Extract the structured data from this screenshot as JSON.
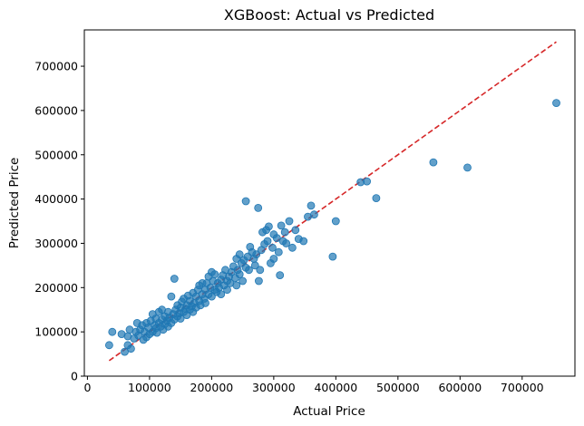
{
  "chart_data": {
    "type": "scatter",
    "title": "XGBoost: Actual vs Predicted",
    "xlabel": "Actual Price",
    "ylabel": "Predicted Price",
    "xlim": [
      -5000,
      785000
    ],
    "ylim": [
      0,
      782000
    ],
    "xticks": [
      0,
      100000,
      200000,
      300000,
      400000,
      500000,
      600000,
      700000
    ],
    "yticks": [
      0,
      100000,
      200000,
      300000,
      400000,
      500000,
      600000,
      700000
    ],
    "xtick_labels": [
      "0",
      "100000",
      "200000",
      "300000",
      "400000",
      "500000",
      "600000",
      "700000"
    ],
    "ytick_labels": [
      "0",
      "100000",
      "200000",
      "300000",
      "400000",
      "500000",
      "600000",
      "700000"
    ],
    "grid": false,
    "colors": {
      "points": "#1f77b4",
      "reference_line": "#d62728"
    },
    "reference_line": {
      "style": "dashed",
      "from": [
        35000,
        35000
      ],
      "to": [
        755000,
        755000
      ]
    },
    "points": [
      [
        35000,
        70000
      ],
      [
        40000,
        100000
      ],
      [
        55000,
        95000
      ],
      [
        60000,
        55000
      ],
      [
        65000,
        90000
      ],
      [
        65000,
        70000
      ],
      [
        68000,
        105000
      ],
      [
        70000,
        62000
      ],
      [
        75000,
        85000
      ],
      [
        78000,
        100000
      ],
      [
        80000,
        120000
      ],
      [
        82000,
        92000
      ],
      [
        85000,
        105000
      ],
      [
        88000,
        115000
      ],
      [
        90000,
        82000
      ],
      [
        92000,
        100000
      ],
      [
        95000,
        88000
      ],
      [
        95000,
        120000
      ],
      [
        98000,
        110000
      ],
      [
        100000,
        95000
      ],
      [
        102000,
        125000
      ],
      [
        105000,
        100000
      ],
      [
        105000,
        140000
      ],
      [
        108000,
        115000
      ],
      [
        110000,
        108000
      ],
      [
        110000,
        130000
      ],
      [
        112000,
        98000
      ],
      [
        115000,
        120000
      ],
      [
        115000,
        145000
      ],
      [
        118000,
        112000
      ],
      [
        120000,
        128000
      ],
      [
        120000,
        150000
      ],
      [
        122000,
        105000
      ],
      [
        125000,
        118000
      ],
      [
        125000,
        135000
      ],
      [
        128000,
        125000
      ],
      [
        130000,
        145000
      ],
      [
        130000,
        112000
      ],
      [
        132000,
        132000
      ],
      [
        135000,
        120000
      ],
      [
        135000,
        180000
      ],
      [
        138000,
        140000
      ],
      [
        140000,
        128000
      ],
      [
        140000,
        220000
      ],
      [
        142000,
        150000
      ],
      [
        145000,
        135000
      ],
      [
        145000,
        160000
      ],
      [
        148000,
        142000
      ],
      [
        150000,
        130000
      ],
      [
        150000,
        155000
      ],
      [
        152000,
        168000
      ],
      [
        155000,
        145000
      ],
      [
        155000,
        175000
      ],
      [
        158000,
        152000
      ],
      [
        160000,
        138000
      ],
      [
        160000,
        160000
      ],
      [
        162000,
        182000
      ],
      [
        165000,
        150000
      ],
      [
        165000,
        170000
      ],
      [
        168000,
        158000
      ],
      [
        170000,
        145000
      ],
      [
        170000,
        188000
      ],
      [
        172000,
        165000
      ],
      [
        175000,
        180000
      ],
      [
        175000,
        155000
      ],
      [
        178000,
        195000
      ],
      [
        180000,
        170000
      ],
      [
        180000,
        205000
      ],
      [
        182000,
        160000
      ],
      [
        185000,
        185000
      ],
      [
        185000,
        210000
      ],
      [
        188000,
        175000
      ],
      [
        190000,
        195000
      ],
      [
        190000,
        165000
      ],
      [
        192000,
        210000
      ],
      [
        195000,
        185000
      ],
      [
        195000,
        225000
      ],
      [
        198000,
        200000
      ],
      [
        200000,
        180000
      ],
      [
        200000,
        235000
      ],
      [
        202000,
        215000
      ],
      [
        205000,
        195000
      ],
      [
        205000,
        230000
      ],
      [
        208000,
        190000
      ],
      [
        210000,
        210000
      ],
      [
        212000,
        200000
      ],
      [
        215000,
        218000
      ],
      [
        215000,
        185000
      ],
      [
        218000,
        228000
      ],
      [
        220000,
        205000
      ],
      [
        222000,
        240000
      ],
      [
        225000,
        215000
      ],
      [
        225000,
        195000
      ],
      [
        228000,
        225000
      ],
      [
        230000,
        210000
      ],
      [
        232000,
        235000
      ],
      [
        235000,
        248000
      ],
      [
        238000,
        222000
      ],
      [
        240000,
        265000
      ],
      [
        240000,
        205000
      ],
      [
        242000,
        240000
      ],
      [
        245000,
        230000
      ],
      [
        245000,
        275000
      ],
      [
        248000,
        255000
      ],
      [
        250000,
        215000
      ],
      [
        252000,
        262000
      ],
      [
        255000,
        395000
      ],
      [
        255000,
        245000
      ],
      [
        258000,
        270000
      ],
      [
        260000,
        240000
      ],
      [
        262000,
        292000
      ],
      [
        265000,
        280000
      ],
      [
        268000,
        265000
      ],
      [
        270000,
        250000
      ],
      [
        272000,
        275000
      ],
      [
        275000,
        380000
      ],
      [
        276000,
        215000
      ],
      [
        278000,
        240000
      ],
      [
        280000,
        285000
      ],
      [
        282000,
        325000
      ],
      [
        285000,
        298000
      ],
      [
        288000,
        330000
      ],
      [
        290000,
        305000
      ],
      [
        292000,
        338000
      ],
      [
        295000,
        255000
      ],
      [
        298000,
        290000
      ],
      [
        300000,
        320000
      ],
      [
        300000,
        265000
      ],
      [
        305000,
        312000
      ],
      [
        308000,
        280000
      ],
      [
        310000,
        228000
      ],
      [
        312000,
        340000
      ],
      [
        315000,
        305000
      ],
      [
        318000,
        325000
      ],
      [
        320000,
        300000
      ],
      [
        325000,
        350000
      ],
      [
        330000,
        290000
      ],
      [
        335000,
        330000
      ],
      [
        340000,
        310000
      ],
      [
        348000,
        305000
      ],
      [
        355000,
        360000
      ],
      [
        360000,
        385000
      ],
      [
        365000,
        365000
      ],
      [
        395000,
        270000
      ],
      [
        400000,
        350000
      ],
      [
        440000,
        438000
      ],
      [
        450000,
        440000
      ],
      [
        465000,
        402000
      ],
      [
        557000,
        483000
      ],
      [
        612000,
        471000
      ],
      [
        755000,
        617000
      ]
    ]
  }
}
